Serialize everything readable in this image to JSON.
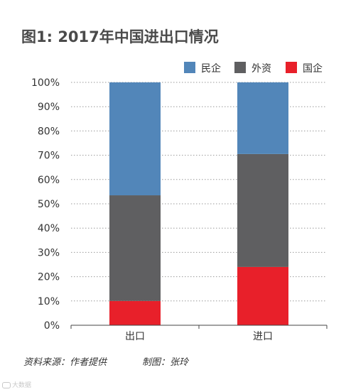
{
  "title": "图1: 2017年中国进出口情况",
  "source": "资料来源：作者提供",
  "credit": "制图：张玲",
  "watermark": "大数据",
  "chart_data": {
    "type": "bar",
    "stacked": true,
    "categories": [
      "出口",
      "进口"
    ],
    "series": [
      {
        "name": "国企",
        "color": "#e8202a",
        "values": [
          10,
          24
        ]
      },
      {
        "name": "外资",
        "color": "#5f5f61",
        "values": [
          43.5,
          46.5
        ]
      },
      {
        "name": "民企",
        "color": "#5286b9",
        "values": [
          46.5,
          29.5
        ]
      }
    ],
    "legend_order": [
      "民企",
      "外资",
      "国企"
    ],
    "legend_position": "top-right",
    "yticks": [
      "0%",
      "10%",
      "20%",
      "30%",
      "40%",
      "50%",
      "60%",
      "70%",
      "80%",
      "90%",
      "100%"
    ],
    "ylim": [
      0,
      100
    ],
    "grid": true
  }
}
